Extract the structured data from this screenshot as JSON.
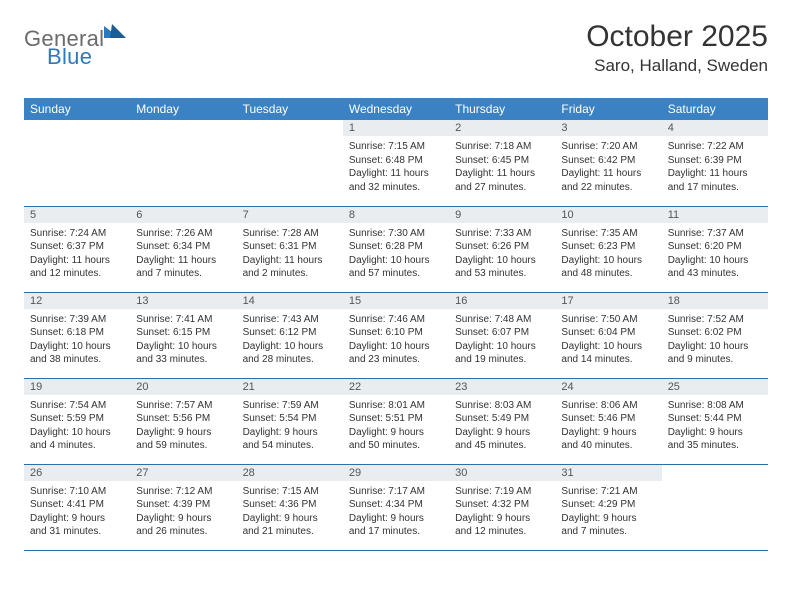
{
  "brand": {
    "part1": "General",
    "part2": "Blue",
    "triangle_color": "#2e78bd"
  },
  "title": "October 2025",
  "location": "Saro, Halland, Sweden",
  "colors": {
    "header_bg": "#3a82c4",
    "header_fg": "#ffffff",
    "daynum_bg": "#e9edef",
    "border": "#2e6da8",
    "text": "#333333",
    "logo_gray": "#6b6b6b",
    "logo_blue": "#2e78bd"
  },
  "day_headers": [
    "Sunday",
    "Monday",
    "Tuesday",
    "Wednesday",
    "Thursday",
    "Friday",
    "Saturday"
  ],
  "weeks": [
    [
      {
        "empty": true
      },
      {
        "empty": true
      },
      {
        "empty": true
      },
      {
        "n": "1",
        "sunrise": "7:15 AM",
        "sunset": "6:48 PM",
        "daylight": "11 hours and 32 minutes."
      },
      {
        "n": "2",
        "sunrise": "7:18 AM",
        "sunset": "6:45 PM",
        "daylight": "11 hours and 27 minutes."
      },
      {
        "n": "3",
        "sunrise": "7:20 AM",
        "sunset": "6:42 PM",
        "daylight": "11 hours and 22 minutes."
      },
      {
        "n": "4",
        "sunrise": "7:22 AM",
        "sunset": "6:39 PM",
        "daylight": "11 hours and 17 minutes."
      }
    ],
    [
      {
        "n": "5",
        "sunrise": "7:24 AM",
        "sunset": "6:37 PM",
        "daylight": "11 hours and 12 minutes."
      },
      {
        "n": "6",
        "sunrise": "7:26 AM",
        "sunset": "6:34 PM",
        "daylight": "11 hours and 7 minutes."
      },
      {
        "n": "7",
        "sunrise": "7:28 AM",
        "sunset": "6:31 PM",
        "daylight": "11 hours and 2 minutes."
      },
      {
        "n": "8",
        "sunrise": "7:30 AM",
        "sunset": "6:28 PM",
        "daylight": "10 hours and 57 minutes."
      },
      {
        "n": "9",
        "sunrise": "7:33 AM",
        "sunset": "6:26 PM",
        "daylight": "10 hours and 53 minutes."
      },
      {
        "n": "10",
        "sunrise": "7:35 AM",
        "sunset": "6:23 PM",
        "daylight": "10 hours and 48 minutes."
      },
      {
        "n": "11",
        "sunrise": "7:37 AM",
        "sunset": "6:20 PM",
        "daylight": "10 hours and 43 minutes."
      }
    ],
    [
      {
        "n": "12",
        "sunrise": "7:39 AM",
        "sunset": "6:18 PM",
        "daylight": "10 hours and 38 minutes."
      },
      {
        "n": "13",
        "sunrise": "7:41 AM",
        "sunset": "6:15 PM",
        "daylight": "10 hours and 33 minutes."
      },
      {
        "n": "14",
        "sunrise": "7:43 AM",
        "sunset": "6:12 PM",
        "daylight": "10 hours and 28 minutes."
      },
      {
        "n": "15",
        "sunrise": "7:46 AM",
        "sunset": "6:10 PM",
        "daylight": "10 hours and 23 minutes."
      },
      {
        "n": "16",
        "sunrise": "7:48 AM",
        "sunset": "6:07 PM",
        "daylight": "10 hours and 19 minutes."
      },
      {
        "n": "17",
        "sunrise": "7:50 AM",
        "sunset": "6:04 PM",
        "daylight": "10 hours and 14 minutes."
      },
      {
        "n": "18",
        "sunrise": "7:52 AM",
        "sunset": "6:02 PM",
        "daylight": "10 hours and 9 minutes."
      }
    ],
    [
      {
        "n": "19",
        "sunrise": "7:54 AM",
        "sunset": "5:59 PM",
        "daylight": "10 hours and 4 minutes."
      },
      {
        "n": "20",
        "sunrise": "7:57 AM",
        "sunset": "5:56 PM",
        "daylight": "9 hours and 59 minutes."
      },
      {
        "n": "21",
        "sunrise": "7:59 AM",
        "sunset": "5:54 PM",
        "daylight": "9 hours and 54 minutes."
      },
      {
        "n": "22",
        "sunrise": "8:01 AM",
        "sunset": "5:51 PM",
        "daylight": "9 hours and 50 minutes."
      },
      {
        "n": "23",
        "sunrise": "8:03 AM",
        "sunset": "5:49 PM",
        "daylight": "9 hours and 45 minutes."
      },
      {
        "n": "24",
        "sunrise": "8:06 AM",
        "sunset": "5:46 PM",
        "daylight": "9 hours and 40 minutes."
      },
      {
        "n": "25",
        "sunrise": "8:08 AM",
        "sunset": "5:44 PM",
        "daylight": "9 hours and 35 minutes."
      }
    ],
    [
      {
        "n": "26",
        "sunrise": "7:10 AM",
        "sunset": "4:41 PM",
        "daylight": "9 hours and 31 minutes."
      },
      {
        "n": "27",
        "sunrise": "7:12 AM",
        "sunset": "4:39 PM",
        "daylight": "9 hours and 26 minutes."
      },
      {
        "n": "28",
        "sunrise": "7:15 AM",
        "sunset": "4:36 PM",
        "daylight": "9 hours and 21 minutes."
      },
      {
        "n": "29",
        "sunrise": "7:17 AM",
        "sunset": "4:34 PM",
        "daylight": "9 hours and 17 minutes."
      },
      {
        "n": "30",
        "sunrise": "7:19 AM",
        "sunset": "4:32 PM",
        "daylight": "9 hours and 12 minutes."
      },
      {
        "n": "31",
        "sunrise": "7:21 AM",
        "sunset": "4:29 PM",
        "daylight": "9 hours and 7 minutes."
      },
      {
        "empty": true
      }
    ]
  ],
  "labels": {
    "sunrise": "Sunrise:",
    "sunset": "Sunset:",
    "daylight": "Daylight:"
  }
}
